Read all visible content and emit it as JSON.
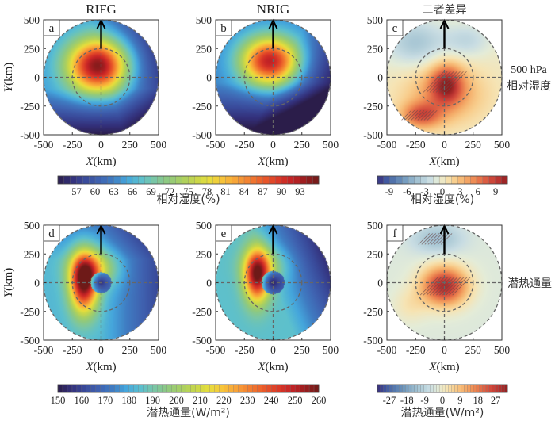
{
  "chart_data": [
    {
      "id": "a",
      "type": "heatmap",
      "title": "RIFG",
      "panel_label": "a",
      "variable": "500 hPa 相对湿度",
      "xlabel": "X(km)",
      "ylabel": "Y(km)",
      "xlim": [
        -500,
        500
      ],
      "ylim": [
        -500,
        500
      ],
      "xticks": [
        "-500",
        "-250",
        "0",
        "250",
        "500"
      ],
      "yticks": [
        "500",
        "250",
        "0",
        "-250",
        "-500"
      ],
      "field": {
        "max_center": [
          -30,
          100
        ],
        "max_value": 93,
        "min_region": "south (-500 y)",
        "min_value": 55
      },
      "colormap": "rainbow_rh"
    },
    {
      "id": "b",
      "type": "heatmap",
      "title": "NRIG",
      "panel_label": "b",
      "variable": "500 hPa 相对湿度",
      "xlabel": "X(km)",
      "ylabel": "",
      "xlim": [
        -500,
        500
      ],
      "ylim": [
        -500,
        500
      ],
      "xticks": [
        "-500",
        "-250",
        "0",
        "250",
        "500"
      ],
      "yticks": [
        "500",
        "250",
        "0",
        "-250",
        "-500"
      ],
      "field": {
        "max_center": [
          -30,
          130
        ],
        "max_value": 90,
        "min_region": "south-east",
        "min_value": 55
      },
      "colormap": "rainbow_rh"
    },
    {
      "id": "c",
      "type": "heatmap",
      "title": "二者差异",
      "panel_label": "c",
      "variable": "500 hPa 相对湿度",
      "xlabel": "X(km)",
      "ylabel": "",
      "xlim": [
        -500,
        500
      ],
      "ylim": [
        -500,
        500
      ],
      "xticks": [
        "-500",
        "-250",
        "0",
        "250",
        "500"
      ],
      "yticks": [
        "500",
        "250",
        "0",
        "-250",
        "-500"
      ],
      "field": {
        "positive_centers": [
          [
            20,
            -60
          ],
          [
            -200,
            -330
          ]
        ],
        "negative_region": "north-west",
        "range": [
          -9,
          9
        ],
        "hatched_significant": true
      },
      "colormap": "diverging"
    },
    {
      "id": "d",
      "type": "heatmap",
      "title": "",
      "panel_label": "d",
      "variable": "潜热通量",
      "xlabel": "X(km)",
      "ylabel": "Y(km)",
      "xlim": [
        -500,
        500
      ],
      "ylim": [
        -500,
        500
      ],
      "xticks": [
        "-500",
        "-250",
        "0",
        "250",
        "500"
      ],
      "yticks": [
        "500",
        "250",
        "0",
        "-250",
        "-500"
      ],
      "field": {
        "max_center": [
          -150,
          0
        ],
        "max_value": 255,
        "eye_min_value": 150,
        "min_region": "east/north-east"
      },
      "colormap": "rainbow_lhf"
    },
    {
      "id": "e",
      "type": "heatmap",
      "title": "",
      "panel_label": "e",
      "variable": "潜热通量",
      "xlabel": "X(km)",
      "ylabel": "",
      "xlim": [
        -500,
        500
      ],
      "ylim": [
        -500,
        500
      ],
      "xticks": [
        "-500",
        "-250",
        "0",
        "250",
        "500"
      ],
      "yticks": [
        "500",
        "250",
        "0",
        "-250",
        "-500"
      ],
      "field": {
        "max_center": [
          -130,
          60
        ],
        "max_value": 250,
        "eye_min_value": 150,
        "min_region": "east/south-east"
      },
      "colormap": "rainbow_lhf"
    },
    {
      "id": "f",
      "type": "heatmap",
      "title": "",
      "panel_label": "f",
      "variable": "潜热通量",
      "xlabel": "X(km)",
      "ylabel": "",
      "xlim": [
        -500,
        500
      ],
      "ylim": [
        -500,
        500
      ],
      "xticks": [
        "-500",
        "-250",
        "0",
        "250",
        "500"
      ],
      "yticks": [
        "500",
        "250",
        "0",
        "-250",
        "-500"
      ],
      "field": {
        "positive_center": [
          0,
          -30
        ],
        "max_value": 27,
        "negative_region": "north",
        "range": [
          -27,
          27
        ],
        "hatched_significant": true
      },
      "colormap": "diverging"
    }
  ],
  "row_labels": [
    {
      "line1": "500 hPa",
      "line2": "相对湿度"
    },
    {
      "line1": "潜热通量",
      "line2": ""
    }
  ],
  "colorbars": {
    "rh": {
      "ticks": [
        "57",
        "60",
        "63",
        "66",
        "69",
        "72",
        "75",
        "78",
        "81",
        "84",
        "87",
        "90",
        "93"
      ],
      "range": [
        54,
        96
      ],
      "label": "相对湿度(%)"
    },
    "rh_diff": {
      "ticks": [
        "-9",
        "-6",
        "-3",
        "0",
        "3",
        "6",
        "9"
      ],
      "range": [
        -11,
        11
      ],
      "label": "相对湿度(%)"
    },
    "lhf": {
      "ticks": [
        "150",
        "160",
        "170",
        "180",
        "190",
        "200",
        "210",
        "220",
        "230",
        "240",
        "250",
        "260"
      ],
      "range": [
        150,
        260
      ],
      "label": "潜热通量(W/m²)"
    },
    "lhf_diff": {
      "ticks": [
        "-27",
        "-18",
        "-9",
        "0",
        "9",
        "18",
        "27"
      ],
      "range": [
        -33,
        33
      ],
      "label": "潜热通量(W/m²)"
    }
  },
  "annotations": {
    "arrow": "north-pointing arrow from (0,250) to (0,500) in every panel",
    "circles_km": [
      250,
      500
    ]
  }
}
